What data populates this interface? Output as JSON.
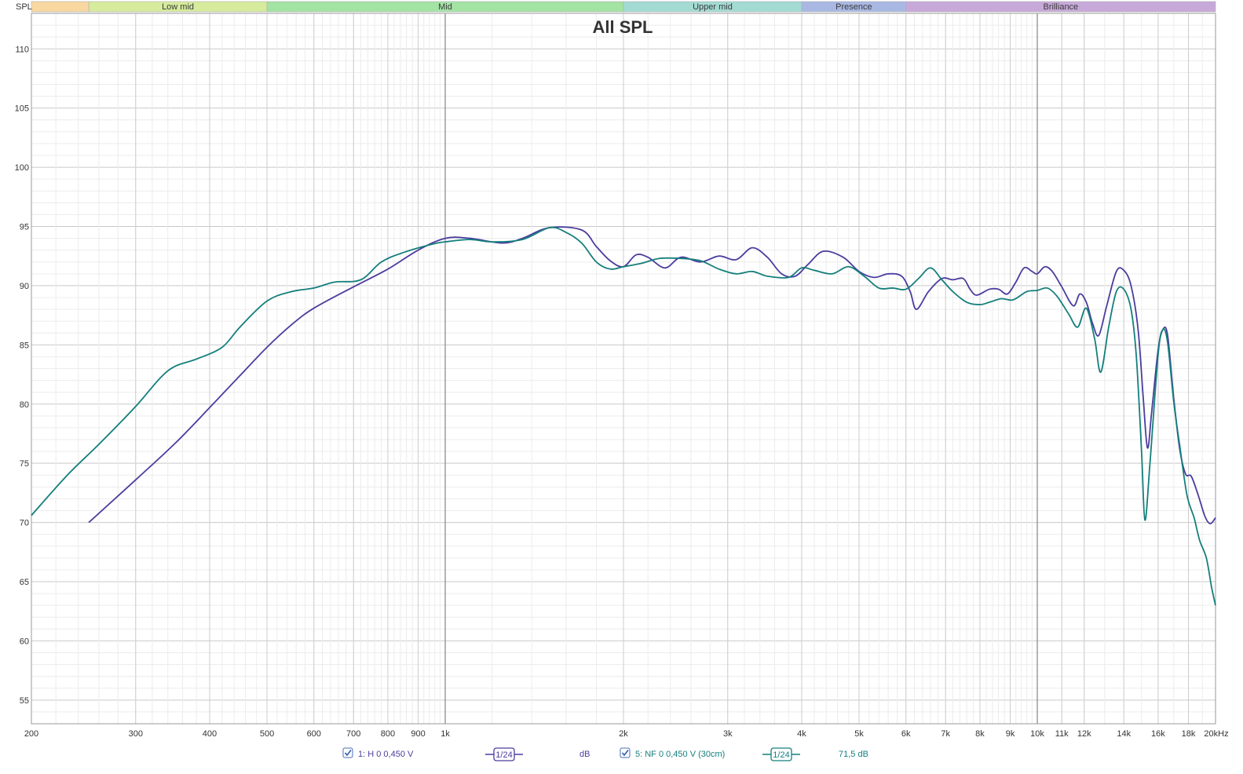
{
  "chart_data": {
    "type": "line",
    "title": "All SPL",
    "ylabel": "SPL",
    "xlabel": "",
    "x_scale": "log",
    "xlim": [
      200,
      20000
    ],
    "ylim": [
      53,
      113
    ],
    "grid": true,
    "y_ticks": [
      55,
      60,
      65,
      70,
      75,
      80,
      85,
      90,
      95,
      100,
      105,
      110
    ],
    "x_ticks": [
      {
        "value": 200,
        "label": "200"
      },
      {
        "value": 300,
        "label": "300"
      },
      {
        "value": 400,
        "label": "400"
      },
      {
        "value": 500,
        "label": "500"
      },
      {
        "value": 600,
        "label": "600"
      },
      {
        "value": 700,
        "label": "700"
      },
      {
        "value": 800,
        "label": "800"
      },
      {
        "value": 900,
        "label": "900"
      },
      {
        "value": 1000,
        "label": "1k"
      },
      {
        "value": 2000,
        "label": "2k"
      },
      {
        "value": 3000,
        "label": "3k"
      },
      {
        "value": 4000,
        "label": "4k"
      },
      {
        "value": 5000,
        "label": "5k"
      },
      {
        "value": 6000,
        "label": "6k"
      },
      {
        "value": 7000,
        "label": "7k"
      },
      {
        "value": 8000,
        "label": "8k"
      },
      {
        "value": 9000,
        "label": "9k"
      },
      {
        "value": 10000,
        "label": "10k"
      },
      {
        "value": 11000,
        "label": "11k"
      },
      {
        "value": 12000,
        "label": "12k"
      },
      {
        "value": 14000,
        "label": "14k"
      },
      {
        "value": 16000,
        "label": "16k"
      },
      {
        "value": 18000,
        "label": "18k"
      },
      {
        "value": 20000,
        "label": "20kHz"
      }
    ],
    "bands": [
      {
        "label": "",
        "from": 200,
        "to": 250,
        "color": "#f8d8a0"
      },
      {
        "label": "Low mid",
        "from": 250,
        "to": 500,
        "color": "#d6eb9c"
      },
      {
        "label": "Mid",
        "from": 500,
        "to": 2000,
        "color": "#a3e3a3"
      },
      {
        "label": "Upper mid",
        "from": 2000,
        "to": 4000,
        "color": "#a3dbd3"
      },
      {
        "label": "Presence",
        "from": 4000,
        "to": 6000,
        "color": "#a9b8e3"
      },
      {
        "label": "Brilliance",
        "from": 6000,
        "to": 20000,
        "color": "#c7a9d9"
      }
    ],
    "series": [
      {
        "name": "1: H 0 0,450 V",
        "color": "#4a3d9e",
        "points": [
          [
            250,
            70
          ],
          [
            300,
            73.6
          ],
          [
            350,
            76.7
          ],
          [
            400,
            79.7
          ],
          [
            450,
            82.4
          ],
          [
            500,
            84.8
          ],
          [
            550,
            86.7
          ],
          [
            600,
            88.1
          ],
          [
            700,
            89.9
          ],
          [
            800,
            91.4
          ],
          [
            900,
            93.0
          ],
          [
            1000,
            94.0
          ],
          [
            1100,
            94.0
          ],
          [
            1250,
            93.6
          ],
          [
            1350,
            94.0
          ],
          [
            1500,
            94.9
          ],
          [
            1700,
            94.7
          ],
          [
            1800,
            93.3
          ],
          [
            1900,
            92.1
          ],
          [
            2000,
            91.6
          ],
          [
            2100,
            92.6
          ],
          [
            2200,
            92.4
          ],
          [
            2350,
            91.5
          ],
          [
            2500,
            92.4
          ],
          [
            2700,
            92.0
          ],
          [
            2900,
            92.5
          ],
          [
            3100,
            92.2
          ],
          [
            3300,
            93.2
          ],
          [
            3500,
            92.4
          ],
          [
            3700,
            91.0
          ],
          [
            3900,
            90.8
          ],
          [
            4100,
            91.8
          ],
          [
            4350,
            92.9
          ],
          [
            4700,
            92.4
          ],
          [
            5000,
            91.2
          ],
          [
            5300,
            90.7
          ],
          [
            5600,
            91.0
          ],
          [
            5900,
            90.8
          ],
          [
            6100,
            89.5
          ],
          [
            6250,
            88.0
          ],
          [
            6550,
            89.5
          ],
          [
            6900,
            90.6
          ],
          [
            7200,
            90.5
          ],
          [
            7500,
            90.6
          ],
          [
            7700,
            89.7
          ],
          [
            7900,
            89.2
          ],
          [
            8300,
            89.7
          ],
          [
            8600,
            89.7
          ],
          [
            8900,
            89.3
          ],
          [
            9200,
            90.3
          ],
          [
            9500,
            91.5
          ],
          [
            9800,
            91.2
          ],
          [
            10000,
            91.0
          ],
          [
            10300,
            91.6
          ],
          [
            10600,
            91.2
          ],
          [
            11000,
            89.9
          ],
          [
            11500,
            88.3
          ],
          [
            11800,
            89.3
          ],
          [
            12100,
            88.6
          ],
          [
            12400,
            86.8
          ],
          [
            12700,
            85.8
          ],
          [
            13100,
            88.3
          ],
          [
            13600,
            91.2
          ],
          [
            14000,
            91.3
          ],
          [
            14400,
            90.0
          ],
          [
            14800,
            86.3
          ],
          [
            15100,
            80.5
          ],
          [
            15350,
            76.3
          ],
          [
            15600,
            79.3
          ],
          [
            16000,
            84.6
          ],
          [
            16300,
            86.3
          ],
          [
            16600,
            85.8
          ],
          [
            17000,
            80.5
          ],
          [
            17400,
            76.2
          ],
          [
            17800,
            74.1
          ],
          [
            18200,
            73.9
          ],
          [
            18700,
            72.3
          ],
          [
            19200,
            70.5
          ],
          [
            19600,
            69.9
          ],
          [
            20000,
            70.4
          ]
        ]
      },
      {
        "name": "5: NF 0 0,450 V (30cm)",
        "color": "#147f7c",
        "points": [
          [
            200,
            70.6
          ],
          [
            230,
            74.0
          ],
          [
            260,
            76.6
          ],
          [
            300,
            79.8
          ],
          [
            330,
            82.2
          ],
          [
            350,
            83.2
          ],
          [
            380,
            83.8
          ],
          [
            420,
            84.8
          ],
          [
            450,
            86.5
          ],
          [
            500,
            88.7
          ],
          [
            550,
            89.5
          ],
          [
            600,
            89.8
          ],
          [
            650,
            90.3
          ],
          [
            720,
            90.5
          ],
          [
            780,
            92.0
          ],
          [
            850,
            92.8
          ],
          [
            950,
            93.5
          ],
          [
            1000,
            93.7
          ],
          [
            1100,
            93.9
          ],
          [
            1200,
            93.7
          ],
          [
            1350,
            93.9
          ],
          [
            1500,
            94.9
          ],
          [
            1600,
            94.5
          ],
          [
            1700,
            93.6
          ],
          [
            1800,
            92.0
          ],
          [
            1900,
            91.4
          ],
          [
            2000,
            91.6
          ],
          [
            2150,
            91.9
          ],
          [
            2300,
            92.3
          ],
          [
            2500,
            92.3
          ],
          [
            2700,
            92.1
          ],
          [
            2900,
            91.4
          ],
          [
            3100,
            91.0
          ],
          [
            3300,
            91.2
          ],
          [
            3500,
            90.8
          ],
          [
            3800,
            90.7
          ],
          [
            4000,
            91.5
          ],
          [
            4200,
            91.3
          ],
          [
            4500,
            91.0
          ],
          [
            4800,
            91.6
          ],
          [
            5100,
            90.8
          ],
          [
            5400,
            89.8
          ],
          [
            5700,
            89.8
          ],
          [
            6000,
            89.7
          ],
          [
            6300,
            90.6
          ],
          [
            6600,
            91.5
          ],
          [
            6900,
            90.5
          ],
          [
            7200,
            89.5
          ],
          [
            7600,
            88.6
          ],
          [
            8000,
            88.4
          ],
          [
            8300,
            88.6
          ],
          [
            8700,
            88.9
          ],
          [
            9100,
            88.8
          ],
          [
            9600,
            89.5
          ],
          [
            10000,
            89.6
          ],
          [
            10400,
            89.8
          ],
          [
            10800,
            89.1
          ],
          [
            11300,
            87.6
          ],
          [
            11700,
            86.5
          ],
          [
            12100,
            88.1
          ],
          [
            12500,
            85.5
          ],
          [
            12800,
            82.7
          ],
          [
            13200,
            86.5
          ],
          [
            13600,
            89.5
          ],
          [
            14000,
            89.7
          ],
          [
            14400,
            88.0
          ],
          [
            14700,
            84.0
          ],
          [
            15000,
            76.0
          ],
          [
            15200,
            70.2
          ],
          [
            15500,
            75.0
          ],
          [
            16000,
            84.2
          ],
          [
            16300,
            86.3
          ],
          [
            16600,
            85.2
          ],
          [
            17000,
            80.2
          ],
          [
            17400,
            76.5
          ],
          [
            17900,
            72.3
          ],
          [
            18400,
            70.4
          ],
          [
            18800,
            68.5
          ],
          [
            19300,
            67.0
          ],
          [
            19700,
            64.5
          ],
          [
            20000,
            63.0
          ]
        ]
      }
    ],
    "legend": {
      "placement": "bottom",
      "items": [
        {
          "checkbox": true,
          "label": "1: H 0 0,450 V",
          "smoothing": "1/24",
          "unit": "dB",
          "color": "#4a3d9e"
        },
        {
          "checkbox": true,
          "label": "5: NF 0 0,450 V (30cm)",
          "smoothing": "1/24",
          "value": "71,5 dB",
          "color": "#147f7c"
        }
      ]
    }
  }
}
